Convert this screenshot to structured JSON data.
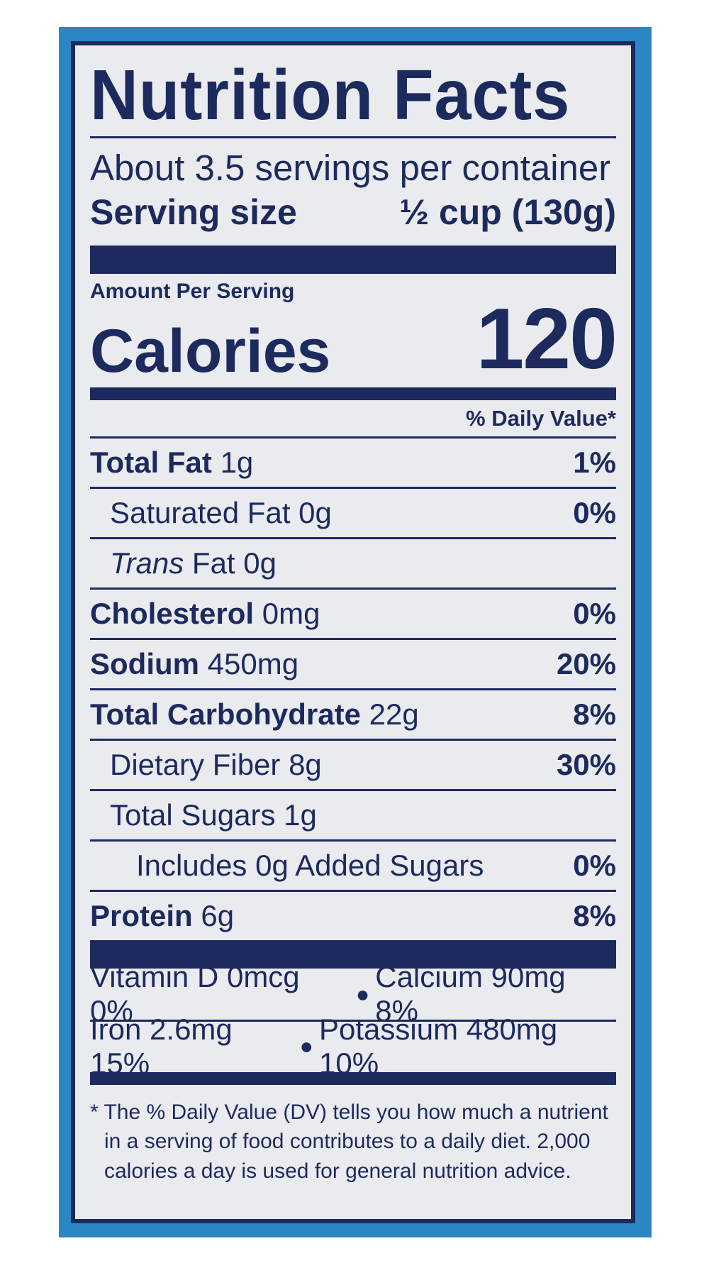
{
  "label": {
    "title": "Nutrition Facts",
    "servings_per_container": "About 3.5 servings per container",
    "serving_size_label": "Serving size",
    "serving_size_value": "½ cup (130g)",
    "amount_per_serving": "Amount Per Serving",
    "calories_label": "Calories",
    "calories_value": "120",
    "daily_value_header": "% Daily Value*",
    "nutrients": [
      {
        "name": "Total Fat",
        "amount": "1g",
        "dv": "1%"
      },
      {
        "name": "Saturated Fat",
        "amount": "0g",
        "dv": "0%"
      },
      {
        "name_italic": "Trans",
        "name": "Fat",
        "amount": "0g",
        "dv": ""
      },
      {
        "name": "Cholesterol",
        "amount": "0mg",
        "dv": "0%"
      },
      {
        "name": "Sodium",
        "amount": "450mg",
        "dv": "20%"
      },
      {
        "name": "Total Carbohydrate",
        "amount": "22g",
        "dv": "8%"
      },
      {
        "name": "Dietary Fiber",
        "amount": "8g",
        "dv": "30%"
      },
      {
        "name": "Total Sugars",
        "amount": "1g",
        "dv": ""
      },
      {
        "name": "Includes 0g Added Sugars",
        "amount": "",
        "dv": "0%"
      },
      {
        "name": "Protein",
        "amount": "6g",
        "dv": "8%"
      }
    ],
    "vitamins": [
      {
        "left": "Vitamin D 0mcg 0%",
        "right": "Calcium 90mg 8%"
      },
      {
        "left": "Iron 2.6mg 15%",
        "right": "Potassium 480mg 10%"
      }
    ],
    "footnote": "* The % Daily Value (DV) tells you how much a nutrient in a serving of food contributes to a daily diet. 2,000 calories a day is used for general nutrition advice."
  },
  "colors": {
    "ink": "#1d2a5e",
    "panel": "#e9ebef",
    "package_blue": "#2a86c5"
  }
}
